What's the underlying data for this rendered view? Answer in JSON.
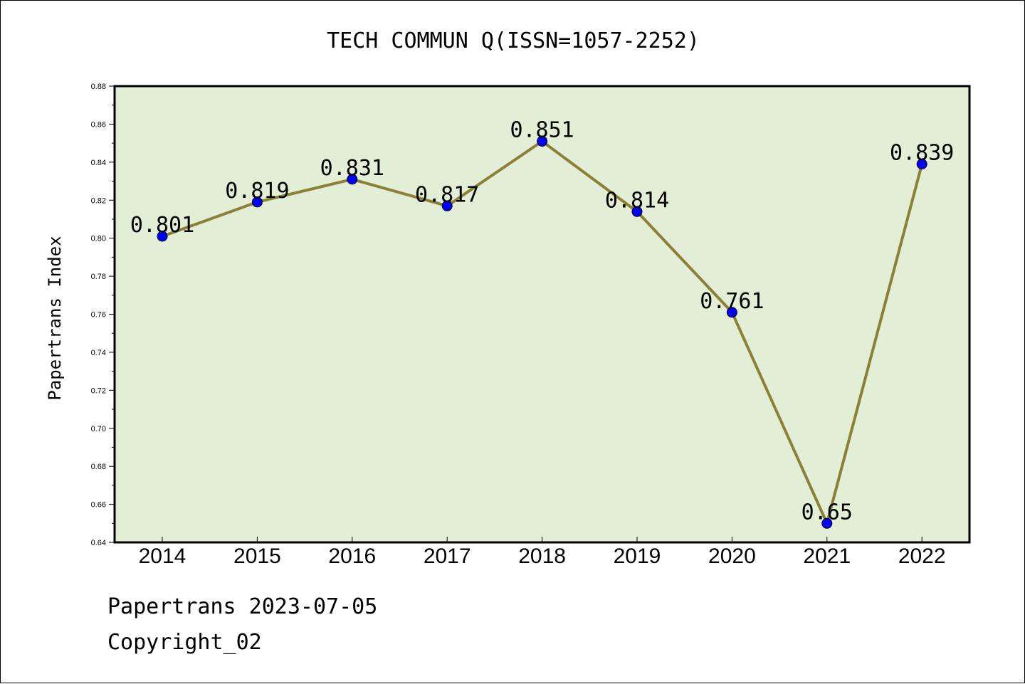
{
  "colors": {
    "plot_background": "#e2efd6",
    "line": "#8b8036",
    "marker": "#0000ff"
  },
  "chart_data": {
    "type": "line",
    "title": "TECH COMMUN Q(ISSN=1057-2252)",
    "xlabel": "",
    "ylabel": "Papertrans Index",
    "categories": [
      "2014",
      "2015",
      "2016",
      "2017",
      "2018",
      "2019",
      "2020",
      "2021",
      "2022"
    ],
    "values": [
      0.801,
      0.819,
      0.831,
      0.817,
      0.851,
      0.814,
      0.761,
      0.65,
      0.839
    ],
    "data_labels": [
      "0.801",
      "0.819",
      "0.831",
      "0.817",
      "0.851",
      "0.814",
      "0.761",
      "0.65",
      "0.839"
    ],
    "ylim": [
      0.64,
      0.88
    ],
    "yticks": [
      "0.64",
      "0.66",
      "0.68",
      "0.70",
      "0.72",
      "0.74",
      "0.76",
      "0.78",
      "0.80",
      "0.82",
      "0.84",
      "0.86",
      "0.88"
    ],
    "grid": false
  },
  "footer": {
    "line1": "Papertrans 2023-07-05",
    "line2": "Copyright_02"
  }
}
